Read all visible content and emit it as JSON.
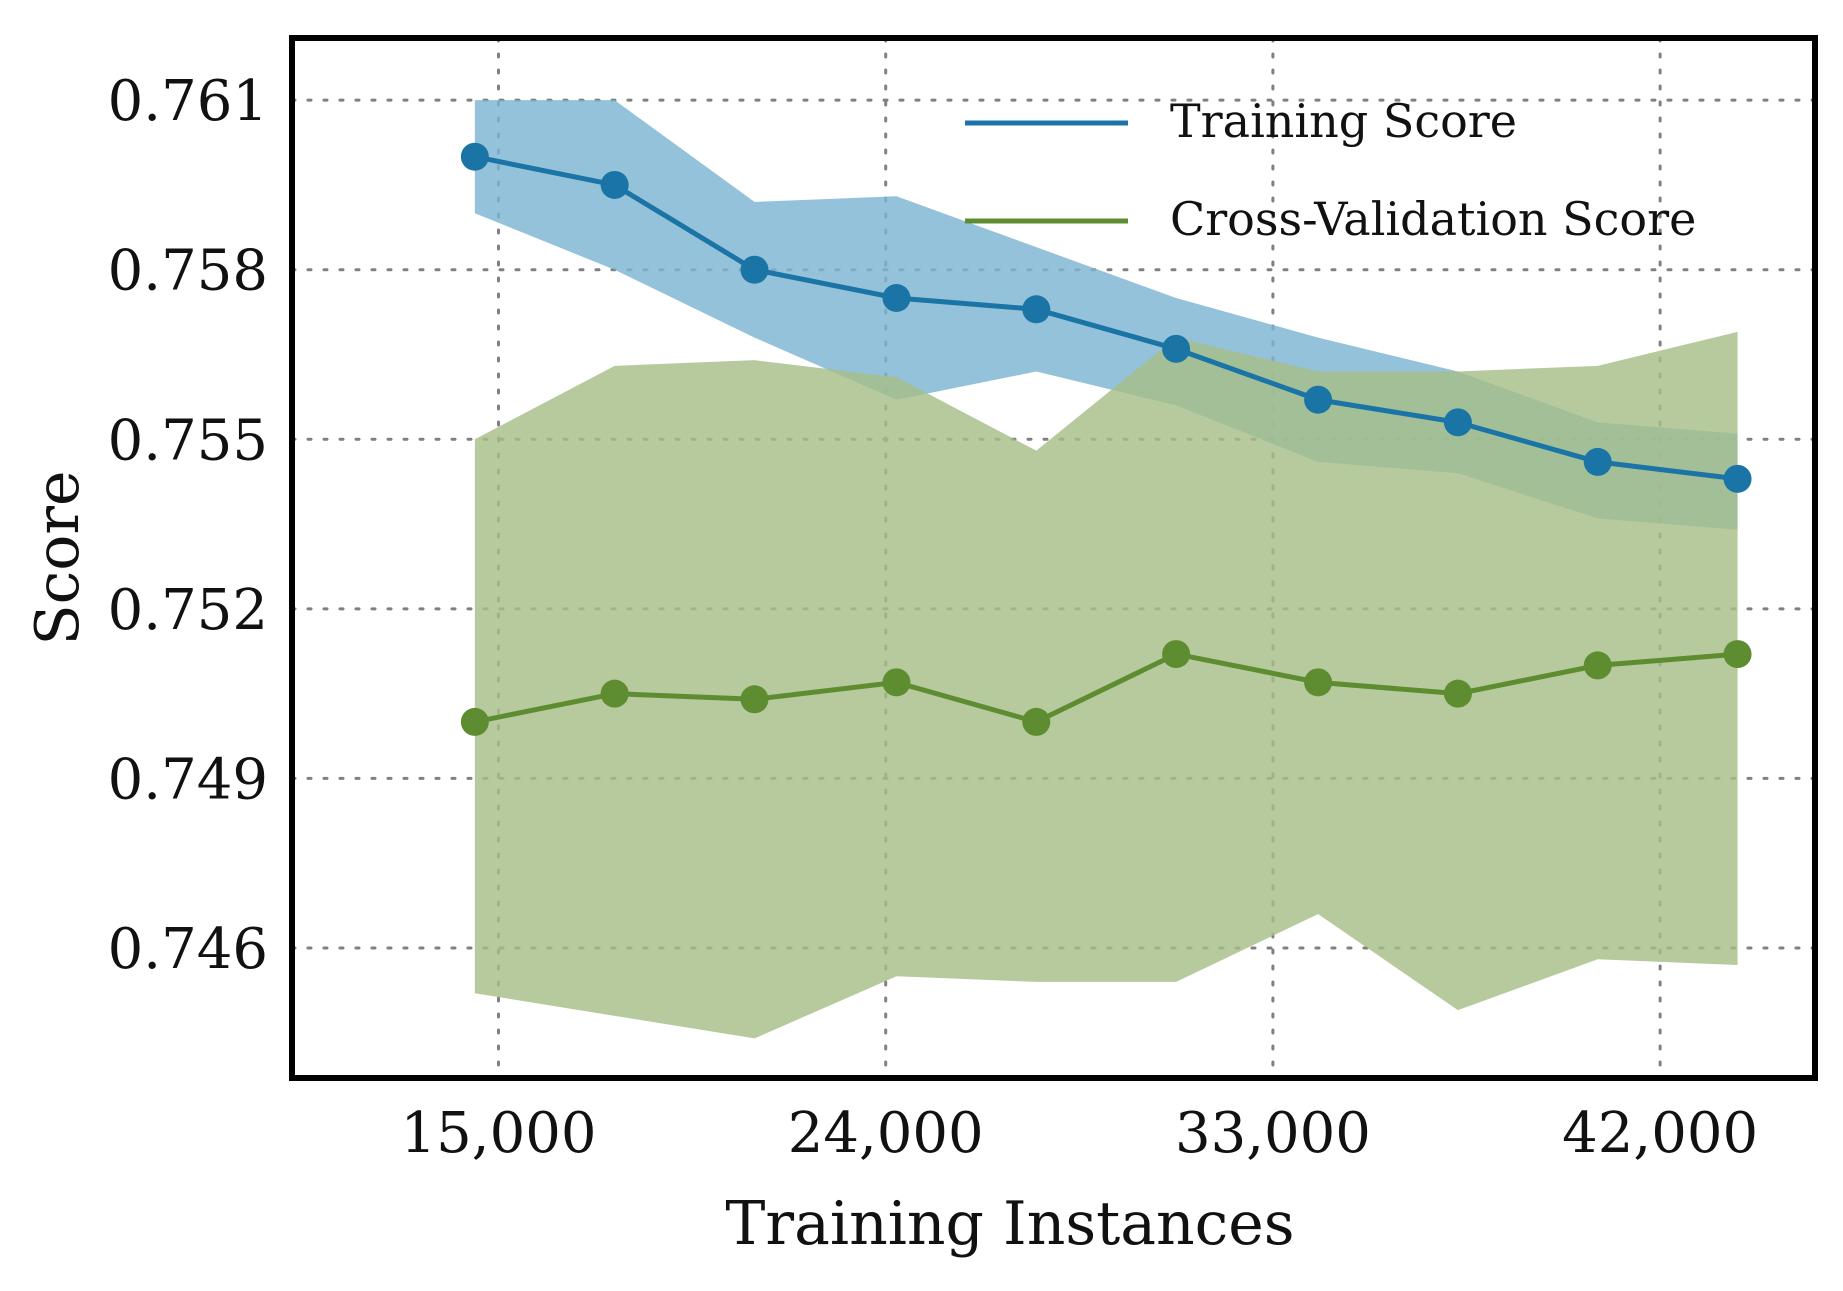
{
  "chart_data": {
    "type": "line",
    "title": "",
    "xlabel": "Training Instances",
    "ylabel": "Score",
    "xlim": [
      10200,
      45600
    ],
    "ylim": [
      0.7437,
      0.7621
    ],
    "grid": true,
    "legend_position": "top-right",
    "x_ticks": [
      15000,
      24000,
      33000,
      42000
    ],
    "x_tick_labels": [
      "15,000",
      "24,000",
      "33,000",
      "42,000"
    ],
    "y_ticks": [
      0.746,
      0.749,
      0.752,
      0.755,
      0.758,
      0.761
    ],
    "y_tick_labels": [
      "0.746",
      "0.749",
      "0.752",
      "0.755",
      "0.758",
      "0.761"
    ],
    "x": [
      14450,
      17700,
      20950,
      24250,
      27500,
      30750,
      34050,
      37300,
      40550,
      43800
    ],
    "series": [
      {
        "name": "Training Score",
        "color": "#1a74a6",
        "band_color": "#7cb4d2",
        "values": [
          0.76,
          0.7595,
          0.758,
          0.7575,
          0.7573,
          0.7566,
          0.7557,
          0.7553,
          0.7546,
          0.7543
        ],
        "upper": [
          0.761,
          0.761,
          0.7592,
          0.7593,
          0.7584,
          0.7575,
          0.7568,
          0.7562,
          0.7553,
          0.7551
        ],
        "lower": [
          0.759,
          0.758,
          0.7568,
          0.7557,
          0.7562,
          0.7556,
          0.7546,
          0.7544,
          0.7536,
          0.7534
        ]
      },
      {
        "name": "Cross-Validation Score",
        "color": "#5e8c31",
        "band_color": "#a6be88",
        "values": [
          0.75,
          0.7505,
          0.7504,
          0.7507,
          0.75,
          0.7512,
          0.7507,
          0.7505,
          0.751,
          0.7512
        ],
        "upper": [
          0.755,
          0.7563,
          0.7564,
          0.7561,
          0.7548,
          0.7568,
          0.7562,
          0.7562,
          0.7563,
          0.7569
        ],
        "lower": [
          0.7452,
          0.7448,
          0.7444,
          0.7455,
          0.7454,
          0.7454,
          0.7466,
          0.7449,
          0.7458,
          0.7457
        ]
      }
    ]
  }
}
